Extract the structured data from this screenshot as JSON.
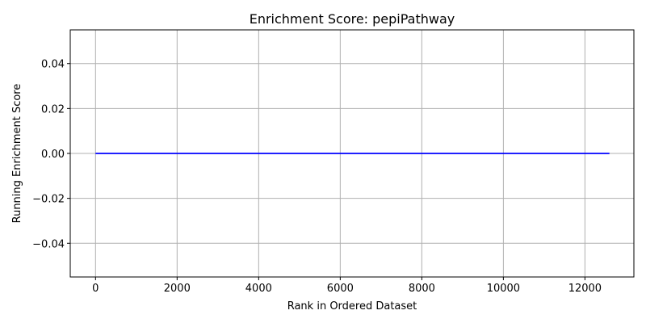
{
  "chart_data": {
    "type": "line",
    "title": "Enrichment Score: pepiPathway",
    "xlabel": "Rank in Ordered Dataset",
    "ylabel": "Running Enrichment Score",
    "xlim": [
      -620,
      13200
    ],
    "ylim": [
      -0.055,
      0.055
    ],
    "xticks": [
      0,
      2000,
      4000,
      6000,
      8000,
      10000,
      12000
    ],
    "xtick_labels": [
      "0",
      "2000",
      "4000",
      "6000",
      "8000",
      "10000",
      "12000"
    ],
    "yticks": [
      -0.04,
      -0.02,
      0.0,
      0.02,
      0.04
    ],
    "ytick_labels": [
      "−0.04",
      "−0.02",
      "0.00",
      "0.02",
      "0.04"
    ],
    "grid": true,
    "series": [
      {
        "color": "#0000ff",
        "x": [
          0,
          12600
        ],
        "y": [
          0,
          0
        ]
      }
    ]
  }
}
